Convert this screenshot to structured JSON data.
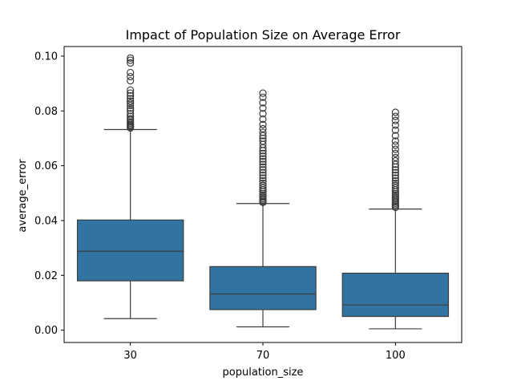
{
  "chart_data": {
    "type": "box",
    "title": "Impact of Population Size on Average Error",
    "xlabel": "population_size",
    "ylabel": "average_error",
    "categories": [
      "30",
      "70",
      "100"
    ],
    "ylim": [
      -0.0045,
      0.1035
    ],
    "yticks": [
      "0.00",
      "0.02",
      "0.04",
      "0.06",
      "0.08",
      "0.10"
    ],
    "box_color": "#3274a1",
    "line_color": "#3d3d3d",
    "boxes": [
      {
        "category": "30",
        "whisker_low": 0.0042,
        "q1": 0.018,
        "median": 0.0288,
        "q3": 0.0402,
        "whisker_high": 0.0732,
        "outliers": [
          0.0738,
          0.0742,
          0.0746,
          0.075,
          0.0755,
          0.076,
          0.0766,
          0.0772,
          0.078,
          0.079,
          0.0802,
          0.081,
          0.082,
          0.0828,
          0.0836,
          0.0845,
          0.0855,
          0.0865,
          0.0876,
          0.091,
          0.0925,
          0.094,
          0.0975,
          0.0985,
          0.0993
        ]
      },
      {
        "category": "70",
        "whisker_low": 0.0012,
        "q1": 0.0075,
        "median": 0.0132,
        "q3": 0.0232,
        "whisker_high": 0.0462,
        "outliers": [
          0.0466,
          0.047,
          0.0475,
          0.048,
          0.0486,
          0.0492,
          0.0498,
          0.0505,
          0.0512,
          0.052,
          0.0528,
          0.0536,
          0.0545,
          0.0555,
          0.0565,
          0.0575,
          0.0585,
          0.0595,
          0.0605,
          0.0615,
          0.0625,
          0.0635,
          0.0645,
          0.0655,
          0.0665,
          0.0678,
          0.069,
          0.07,
          0.071,
          0.0722,
          0.0735,
          0.075,
          0.077,
          0.079,
          0.081,
          0.083,
          0.085,
          0.0865
        ]
      },
      {
        "category": "100",
        "whisker_low": 0.0005,
        "q1": 0.005,
        "median": 0.0092,
        "q3": 0.0208,
        "whisker_high": 0.0442,
        "outliers": [
          0.0448,
          0.0453,
          0.0458,
          0.0463,
          0.0468,
          0.0474,
          0.048,
          0.0486,
          0.0492,
          0.0498,
          0.0505,
          0.0512,
          0.052,
          0.0528,
          0.0536,
          0.0545,
          0.0555,
          0.0565,
          0.0575,
          0.0585,
          0.0595,
          0.0605,
          0.0618,
          0.063,
          0.0645,
          0.066,
          0.0675,
          0.069,
          0.071,
          0.073,
          0.0748,
          0.0765,
          0.078,
          0.0795
        ]
      }
    ]
  }
}
